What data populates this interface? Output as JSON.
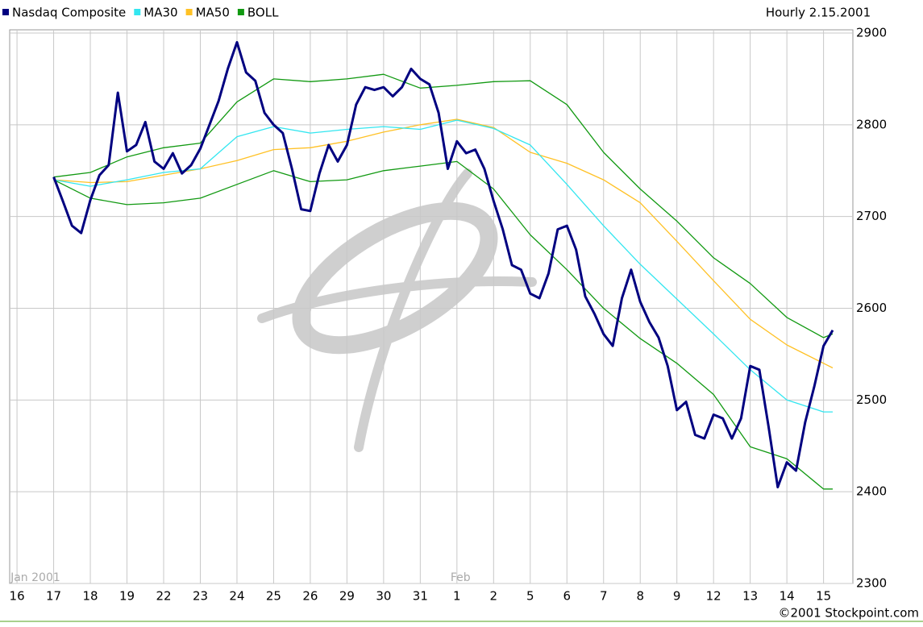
{
  "chart_data": {
    "type": "line",
    "subtitle": "Hourly 2.15.2001",
    "credit": "©2001 Stockpoint.com",
    "xlim": [
      -0.2,
      22.8
    ],
    "ylim": [
      2300,
      2900
    ],
    "yticks": [
      2300,
      2400,
      2500,
      2600,
      2700,
      2800,
      2900
    ],
    "xticks": [
      {
        "value": 0,
        "label": "16"
      },
      {
        "value": 1,
        "label": "17"
      },
      {
        "value": 2,
        "label": "18"
      },
      {
        "value": 3,
        "label": "19"
      },
      {
        "value": 4,
        "label": "22"
      },
      {
        "value": 5,
        "label": "23"
      },
      {
        "value": 6,
        "label": "24"
      },
      {
        "value": 7,
        "label": "25"
      },
      {
        "value": 8,
        "label": "26"
      },
      {
        "value": 9,
        "label": "29"
      },
      {
        "value": 10,
        "label": "30"
      },
      {
        "value": 11,
        "label": "31"
      },
      {
        "value": 12,
        "label": "1"
      },
      {
        "value": 13,
        "label": "2"
      },
      {
        "value": 14,
        "label": "5"
      },
      {
        "value": 15,
        "label": "6"
      },
      {
        "value": 16,
        "label": "7"
      },
      {
        "value": 17,
        "label": "8"
      },
      {
        "value": 18,
        "label": "9"
      },
      {
        "value": 19,
        "label": "12"
      },
      {
        "value": 20,
        "label": "13"
      },
      {
        "value": 21,
        "label": "14"
      },
      {
        "value": 22,
        "label": "15"
      }
    ],
    "period_labels": [
      {
        "value": 0,
        "label": "Jan 2001"
      },
      {
        "value": 12,
        "label": "Feb"
      }
    ],
    "grid": true,
    "legend": "top-left",
    "series": [
      {
        "name": "Nasdaq Composite",
        "color": "#000080",
        "x": [
          1,
          1.25,
          1.5,
          1.75,
          2,
          2.25,
          2.5,
          2.75,
          3,
          3.25,
          3.5,
          3.75,
          4,
          4.25,
          4.5,
          4.75,
          5,
          5.25,
          5.5,
          5.75,
          6,
          6.25,
          6.5,
          6.75,
          7,
          7.25,
          7.5,
          7.75,
          8,
          8.25,
          8.5,
          8.75,
          9,
          9.25,
          9.5,
          9.75,
          10,
          10.25,
          10.5,
          10.75,
          11,
          11.25,
          11.5,
          11.75,
          12,
          12.25,
          12.5,
          12.75,
          13,
          13.25,
          13.5,
          13.75,
          14,
          14.25,
          14.5,
          14.75,
          15,
          15.25,
          15.5,
          15.75,
          16,
          16.25,
          16.5,
          16.75,
          17,
          17.25,
          17.5,
          17.75,
          18,
          18.25,
          18.5,
          18.75,
          19,
          19.25,
          19.5,
          19.75,
          20,
          20.25,
          20.5,
          20.75,
          21,
          21.25,
          21.5,
          21.75,
          22,
          22.25
        ],
        "values": [
          2743,
          2717,
          2690,
          2682,
          2718,
          2745,
          2756,
          2835,
          2771,
          2778,
          2803,
          2760,
          2752,
          2769,
          2747,
          2756,
          2774,
          2800,
          2826,
          2861,
          2890,
          2857,
          2848,
          2813,
          2800,
          2791,
          2752,
          2708,
          2706,
          2747,
          2778,
          2760,
          2778,
          2822,
          2841,
          2838,
          2841,
          2831,
          2841,
          2861,
          2850,
          2844,
          2813,
          2752,
          2782,
          2769,
          2773,
          2752,
          2717,
          2686,
          2647,
          2642,
          2616,
          2611,
          2638,
          2686,
          2690,
          2664,
          2613,
          2594,
          2572,
          2559,
          2611,
          2642,
          2607,
          2585,
          2568,
          2537,
          2489,
          2498,
          2462,
          2458,
          2484,
          2480,
          2458,
          2480,
          2537,
          2533,
          2471,
          2405,
          2432,
          2423,
          2476,
          2515,
          2559,
          2576
        ]
      },
      {
        "name": "MA30",
        "color": "#33e6f0",
        "x": [
          1,
          2,
          3,
          4,
          5,
          6,
          7,
          8,
          9,
          10,
          11,
          12,
          13,
          14,
          15,
          16,
          17,
          18,
          19,
          20,
          21,
          22,
          22.25
        ],
        "values": [
          2740,
          2733,
          2740,
          2748,
          2752,
          2787,
          2798,
          2791,
          2795,
          2798,
          2795,
          2805,
          2796,
          2778,
          2735,
          2690,
          2648,
          2610,
          2572,
          2533,
          2500,
          2487,
          2487
        ]
      },
      {
        "name": "MA50",
        "color": "#ffc125",
        "x": [
          1,
          2,
          3,
          4,
          5,
          6,
          7,
          8,
          9,
          10,
          11,
          12,
          13,
          14,
          15,
          16,
          17,
          18,
          19,
          20,
          21,
          22,
          22.25
        ],
        "values": [
          2740,
          2737,
          2738,
          2745,
          2752,
          2761,
          2773,
          2775,
          2782,
          2792,
          2800,
          2806,
          2797,
          2770,
          2758,
          2740,
          2715,
          2673,
          2630,
          2588,
          2560,
          2540,
          2535
        ]
      },
      {
        "name": "BOLL",
        "color": "#119911",
        "x": [
          1,
          2,
          3,
          4,
          5,
          6,
          7,
          8,
          9,
          10,
          11,
          12,
          13,
          14,
          15,
          16,
          17,
          18,
          19,
          20,
          21,
          22,
          22.25
        ],
        "values": [
          2743,
          2748,
          2765,
          2775,
          2780,
          2825,
          2850,
          2847,
          2850,
          2855,
          2840,
          2843,
          2847,
          2848,
          2822,
          2770,
          2730,
          2695,
          2655,
          2627,
          2590,
          2568,
          2572
        ],
        "lower": [
          2740,
          2720,
          2713,
          2715,
          2720,
          2735,
          2750,
          2738,
          2740,
          2750,
          2755,
          2760,
          2730,
          2680,
          2642,
          2600,
          2567,
          2540,
          2506,
          2449,
          2436,
          2403,
          2403
        ]
      }
    ]
  }
}
